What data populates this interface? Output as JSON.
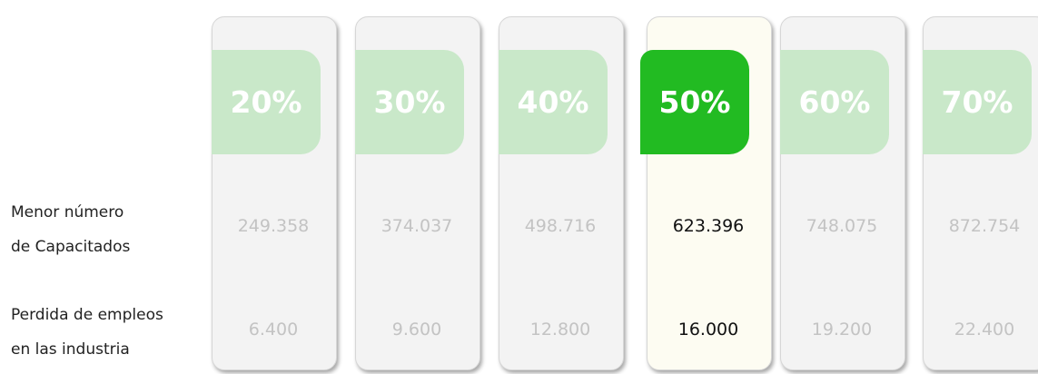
{
  "row_labels": [
    [
      "Menor número",
      "de Capacitados"
    ],
    [
      "Perdida de empleos",
      "en las industria"
    ]
  ],
  "selected_index": 3,
  "columns": [
    {
      "percent": "20%",
      "capacitados": "249.358",
      "empleos": "6.400"
    },
    {
      "percent": "30%",
      "capacitados": "374.037",
      "empleos": "9.600"
    },
    {
      "percent": "40%",
      "capacitados": "498.716",
      "empleos": "12.800"
    },
    {
      "percent": "50%",
      "capacitados": "623.396",
      "empleos": "16.000"
    },
    {
      "percent": "60%",
      "capacitados": "748.075",
      "empleos": "19.200"
    },
    {
      "percent": "70%",
      "capacitados": "872.754",
      "empleos": "22.400"
    }
  ]
}
